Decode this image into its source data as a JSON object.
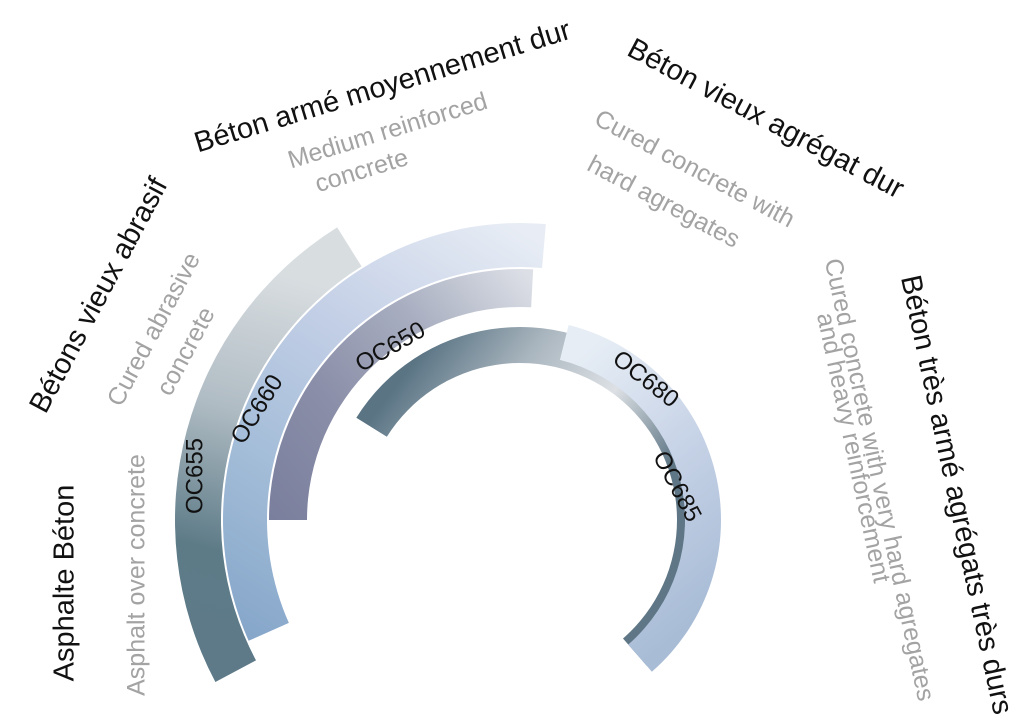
{
  "bands": [
    {
      "code": "OC655",
      "colors": [
        "#5e7a89",
        "#5d7b87",
        "#b0bcc4",
        "#d8dde0"
      ]
    },
    {
      "code": "OC660",
      "colors": [
        "#7ea0c6",
        "#9fbad6",
        "#c3cfe6",
        "#e8edf5"
      ]
    },
    {
      "code": "OC650",
      "colors": [
        "#7a7f9d",
        "#8a8ea8",
        "#a8aec0",
        "#dcdfe6"
      ]
    },
    {
      "code": "OC680",
      "colors": [
        "#5a7484",
        "#aab6bf",
        "#dde1e5",
        "#5e7685"
      ]
    },
    {
      "code": "OC685",
      "colors": [
        "#e6edf5",
        "#c6d2e6",
        "#a8bcd6"
      ]
    }
  ],
  "categories": [
    {
      "french": "Asphalte Béton",
      "english": [
        "Asphalt over concrete"
      ]
    },
    {
      "french": "Bétons vieux abrasif",
      "english": [
        "Cured abrasive",
        "concrete"
      ]
    },
    {
      "french": "Béton armé moyennement dur",
      "english": [
        "Medium reinforced",
        "concrete"
      ]
    },
    {
      "french": "Béton vieux agrégat dur",
      "english": [
        "Cured concrete with",
        "hard agregates"
      ]
    },
    {
      "french": "Béton très armé agrégats très durs",
      "english": [
        "Cured concrete with very hard agregates",
        "and heavy reinforcement"
      ]
    }
  ]
}
